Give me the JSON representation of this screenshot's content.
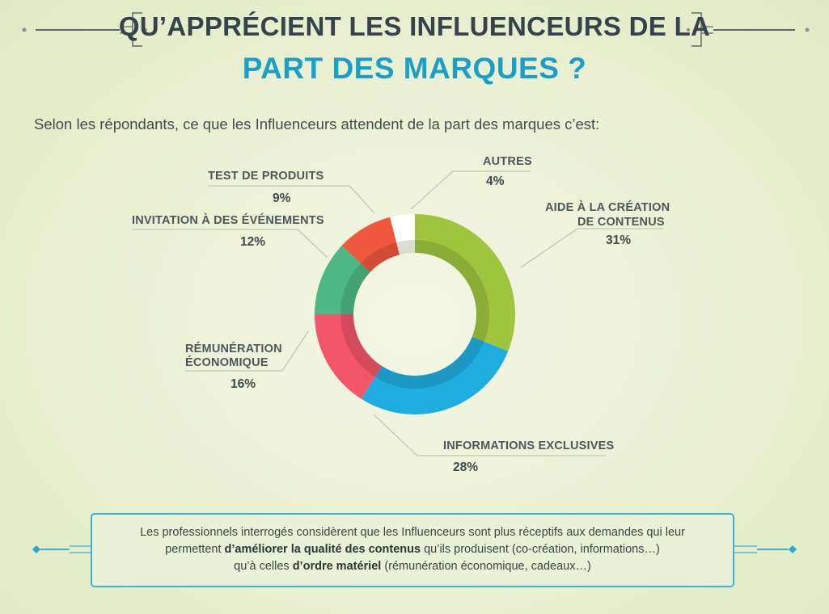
{
  "header": {
    "title_line1": "QU’APPRÉCIENT LES INFLUENCEURS DE LA",
    "title_line2": "PART DES MARQUES ?"
  },
  "subtitle": "Selon les répondants, ce que les Influenceurs attendent de la part des marques c’est:",
  "chart_data": {
    "type": "pie",
    "categories": [
      "AIDE À LA CRÉATION DE CONTENUS",
      "INFORMATIONS EXCLUSIVES",
      "RÉMUNÉRATION ÉCONOMIQUE",
      "INVITATION À DES ÉVÉNEMENTS",
      "TEST DE PRODUITS",
      "AUTRES"
    ],
    "values": [
      31,
      28,
      16,
      12,
      9,
      4
    ],
    "value_labels": [
      "31%",
      "28%",
      "16%",
      "12%",
      "9%",
      "4%"
    ],
    "colors": [
      "#9fc43e",
      "#1fade0",
      "#f25668",
      "#4db885",
      "#f0583d",
      "#ffffff"
    ],
    "donut": true
  },
  "labels": {
    "aide_1": "AIDE À LA CRÉATION",
    "aide_2": "DE CONTENUS",
    "info": "INFORMATIONS EXCLUSIVES",
    "remu_1": "RÉMUNÉRATION",
    "remu_2": "ÉCONOMIQUE",
    "invit": "INVITATION À DES ÉVÉNEMENTS",
    "test": "TEST DE PRODUITS",
    "autres": "AUTRES"
  },
  "note": {
    "line1": "Les professionnels interrogés considèrent que les Influenceurs sont plus réceptifs aux demandes qui leur",
    "line2_pre": "permettent ",
    "line2_bold": "d’améliorer la qualité des contenus",
    "line2_post": " qu’ils produisent (co-création, informations…)",
    "line3_pre": "qu’à celles ",
    "line3_bold": "d’ordre matériel",
    "line3_post": " (rémunération économique, cadeaux…)"
  }
}
